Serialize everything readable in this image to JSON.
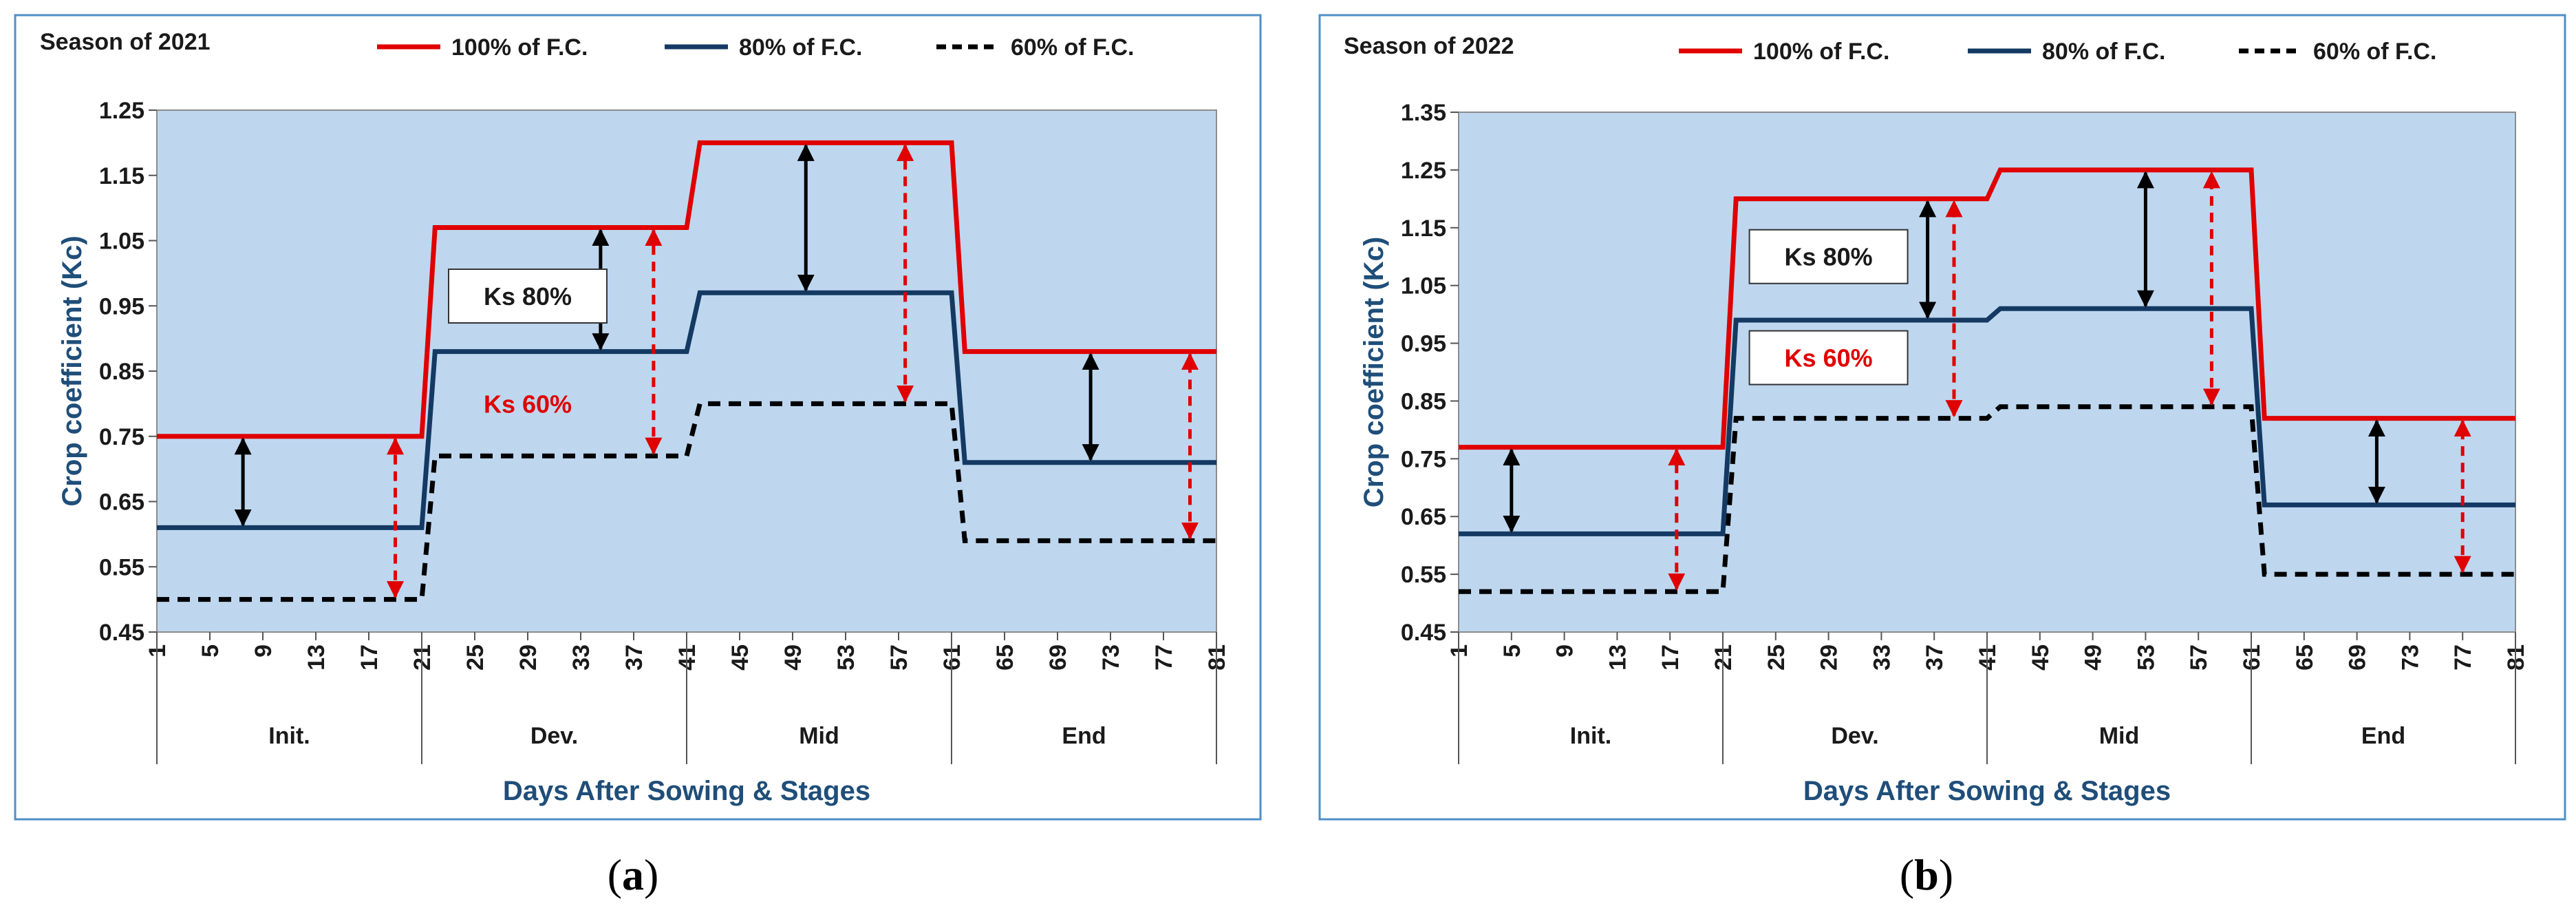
{
  "colors": {
    "red": "#e00000",
    "navy": "#143a63",
    "black": "#000000",
    "plot_bg": "#bed7ef",
    "frame": "#4f8fc7",
    "axis_title": "#1f4e79"
  },
  "chart_data": [
    {
      "type": "line",
      "panel": "(a)",
      "panel_letter": "a",
      "title": "Season of 2021",
      "xlabel": "Days After Sowing & Stages",
      "ylabel": "Crop coefficient (Kc)",
      "ylim": [
        0.45,
        1.25
      ],
      "yticks": [
        "0.45",
        "0.55",
        "0.65",
        "0.75",
        "0.85",
        "0.95",
        "1.05",
        "1.15",
        "1.25"
      ],
      "xlim": [
        1,
        81
      ],
      "xticks": [
        "1",
        "5",
        "9",
        "13",
        "17",
        "21",
        "25",
        "29",
        "33",
        "37",
        "41",
        "45",
        "49",
        "53",
        "57",
        "61",
        "65",
        "69",
        "73",
        "77",
        "81"
      ],
      "stages": [
        {
          "label": "Init.",
          "from": 1,
          "to": 21
        },
        {
          "label": "Dev.",
          "from": 21,
          "to": 41
        },
        {
          "label": "Mid",
          "from": 41,
          "to": 61
        },
        {
          "label": "End",
          "from": 61,
          "to": 81
        }
      ],
      "series": [
        {
          "name": "100% of F.C.",
          "style": "solid-red",
          "points": [
            [
              1,
              0.75
            ],
            [
              21,
              0.75
            ],
            [
              22,
              1.07
            ],
            [
              41,
              1.07
            ],
            [
              42,
              1.2
            ],
            [
              61,
              1.2
            ],
            [
              62,
              0.88
            ],
            [
              81,
              0.88
            ]
          ]
        },
        {
          "name": "80% of F.C.",
          "style": "solid-navy",
          "points": [
            [
              1,
              0.61
            ],
            [
              21,
              0.61
            ],
            [
              22,
              0.88
            ],
            [
              41,
              0.88
            ],
            [
              42,
              0.97
            ],
            [
              61,
              0.97
            ],
            [
              62,
              0.71
            ],
            [
              81,
              0.71
            ]
          ]
        },
        {
          "name": "60% of F.C.",
          "style": "dashed-black",
          "points": [
            [
              1,
              0.5
            ],
            [
              21,
              0.5
            ],
            [
              22,
              0.72
            ],
            [
              41,
              0.72
            ],
            [
              42,
              0.8
            ],
            [
              61,
              0.8
            ],
            [
              62,
              0.59
            ],
            [
              81,
              0.59
            ]
          ]
        }
      ],
      "arrows": [
        {
          "kind": "solid",
          "x": 7.5,
          "y1": 0.61,
          "y2": 0.75
        },
        {
          "kind": "dashed",
          "x": 19,
          "y1": 0.5,
          "y2": 0.75
        },
        {
          "kind": "solid",
          "x": 34.5,
          "y1": 0.88,
          "y2": 1.07
        },
        {
          "kind": "dashed",
          "x": 38.5,
          "y1": 0.72,
          "y2": 1.07
        },
        {
          "kind": "solid",
          "x": 50,
          "y1": 0.97,
          "y2": 1.2
        },
        {
          "kind": "dashed",
          "x": 57.5,
          "y1": 0.8,
          "y2": 1.2
        },
        {
          "kind": "solid",
          "x": 71.5,
          "y1": 0.71,
          "y2": 0.88
        },
        {
          "kind": "dashed",
          "x": 79,
          "y1": 0.59,
          "y2": 0.88
        }
      ],
      "annotations": [
        {
          "text": "Ks 80%",
          "boxed": true,
          "color": "#1a1a1a",
          "x": 29,
          "y": 0.965
        },
        {
          "text": "Ks 60%",
          "boxed": false,
          "color": "#e00000",
          "x": 29,
          "y": 0.8
        }
      ]
    },
    {
      "type": "line",
      "panel": "(b)",
      "panel_letter": "b",
      "title": "Season of 2022",
      "xlabel": "Days After Sowing & Stages",
      "ylabel": "Crop coefficient (Kc)",
      "ylim": [
        0.45,
        1.35
      ],
      "yticks": [
        "0.45",
        "0.55",
        "0.65",
        "0.75",
        "0.85",
        "0.95",
        "1.05",
        "1.15",
        "1.25",
        "1.35"
      ],
      "xlim": [
        1,
        81
      ],
      "xticks": [
        "1",
        "5",
        "9",
        "13",
        "17",
        "21",
        "25",
        "29",
        "33",
        "37",
        "41",
        "45",
        "49",
        "53",
        "57",
        "61",
        "65",
        "69",
        "73",
        "77",
        "81"
      ],
      "stages": [
        {
          "label": "Init.",
          "from": 1,
          "to": 21
        },
        {
          "label": "Dev.",
          "from": 21,
          "to": 41
        },
        {
          "label": "Mid",
          "from": 41,
          "to": 61
        },
        {
          "label": "End",
          "from": 61,
          "to": 81
        }
      ],
      "series": [
        {
          "name": "100% of F.C.",
          "style": "solid-red",
          "points": [
            [
              1,
              0.77
            ],
            [
              21,
              0.77
            ],
            [
              22,
              1.2
            ],
            [
              41,
              1.2
            ],
            [
              42,
              1.25
            ],
            [
              61,
              1.25
            ],
            [
              62,
              0.82
            ],
            [
              81,
              0.82
            ]
          ]
        },
        {
          "name": "80% of F.C.",
          "style": "solid-navy",
          "points": [
            [
              1,
              0.62
            ],
            [
              21,
              0.62
            ],
            [
              22,
              0.99
            ],
            [
              41,
              0.99
            ],
            [
              42,
              1.01
            ],
            [
              61,
              1.01
            ],
            [
              62,
              0.67
            ],
            [
              81,
              0.67
            ]
          ]
        },
        {
          "name": "60% of F.C.",
          "style": "dashed-black",
          "points": [
            [
              1,
              0.52
            ],
            [
              21,
              0.52
            ],
            [
              22,
              0.82
            ],
            [
              41,
              0.82
            ],
            [
              42,
              0.84
            ],
            [
              61,
              0.84
            ],
            [
              62,
              0.55
            ],
            [
              81,
              0.55
            ]
          ]
        }
      ],
      "arrows": [
        {
          "kind": "solid",
          "x": 5,
          "y1": 0.62,
          "y2": 0.77
        },
        {
          "kind": "dashed",
          "x": 17.5,
          "y1": 0.52,
          "y2": 0.77
        },
        {
          "kind": "solid",
          "x": 36.5,
          "y1": 0.99,
          "y2": 1.2
        },
        {
          "kind": "dashed",
          "x": 38.5,
          "y1": 0.82,
          "y2": 1.2
        },
        {
          "kind": "solid",
          "x": 53,
          "y1": 1.01,
          "y2": 1.25
        },
        {
          "kind": "dashed",
          "x": 58,
          "y1": 0.84,
          "y2": 1.25
        },
        {
          "kind": "solid",
          "x": 70.5,
          "y1": 0.67,
          "y2": 0.82
        },
        {
          "kind": "dashed",
          "x": 77,
          "y1": 0.55,
          "y2": 0.82
        }
      ],
      "annotations": [
        {
          "text": "Ks 80%",
          "boxed": true,
          "color": "#1a1a1a",
          "x": 29,
          "y": 1.1
        },
        {
          "text": "Ks 60%",
          "boxed": true,
          "color": "#e00000",
          "x": 29,
          "y": 0.925
        }
      ]
    }
  ]
}
